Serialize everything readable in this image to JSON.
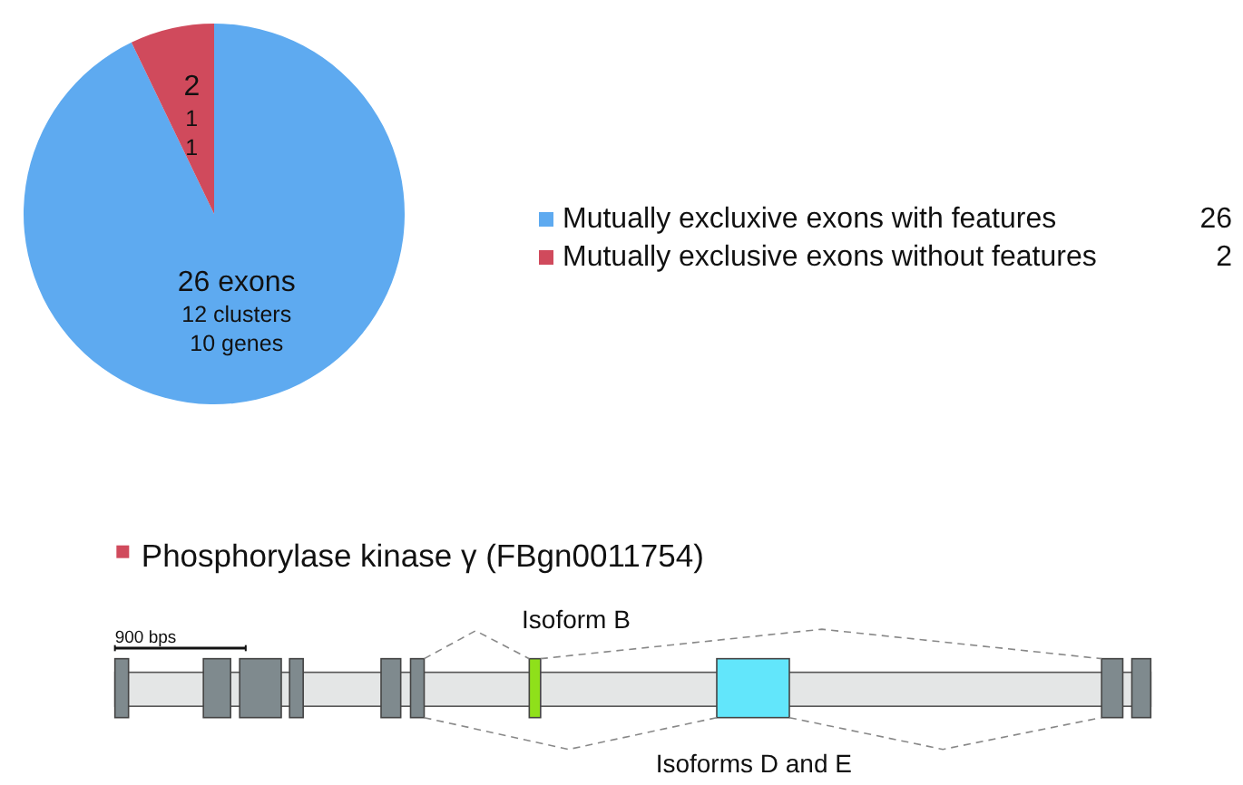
{
  "chart_data": {
    "type": "pie",
    "categories": [
      "Mutually excluxive exons with features",
      "Mutually exclusive exons without features"
    ],
    "values": [
      26,
      2
    ],
    "colors": [
      "#5eaaf0",
      "#d04a5c"
    ],
    "value_labels": [
      "26 exons\n12 clusters\n10 genes",
      "2\n1\n1"
    ],
    "legend": "right",
    "annotations": [
      "Phosphorylase kinase γ (FBgn0011754)",
      "900 bps",
      "Isoform B",
      "Isoforms D and E",
      "26",
      "2"
    ]
  }
}
